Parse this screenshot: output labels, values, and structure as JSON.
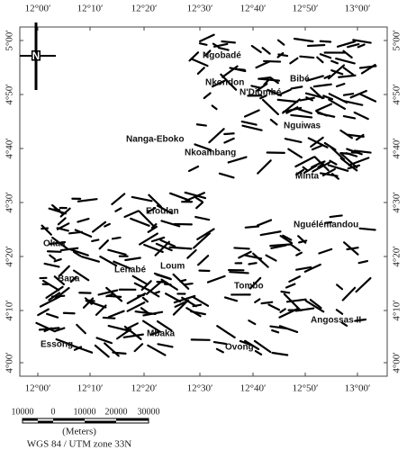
{
  "map": {
    "x_ticks": [
      "12°00′",
      "12°10′",
      "12°20′",
      "12°30′",
      "12°40′",
      "12°50′",
      "13°00′"
    ],
    "y_ticks": [
      "5°00′",
      "4°50′",
      "4°40′",
      "4°30′",
      "4°20′",
      "4°10′",
      "4°00′"
    ],
    "north_label": "N",
    "places": [
      "Ngobadé",
      "Nkondon",
      "Bibé",
      "N'Djombé",
      "Nguiwas",
      "Nanga-Eboko",
      "Nkoambang",
      "Minta",
      "Efoulan",
      "Nguélémandou",
      "Okaa",
      "Loum",
      "Lehabé",
      "Bana",
      "Tombo",
      "Angossas II",
      "Mbaka",
      "Essong",
      "Ovong"
    ],
    "scale": {
      "labels": [
        "10000",
        "0",
        "10000",
        "20000",
        "30000"
      ],
      "unit": "(Meters)"
    },
    "projection": "WGS 84 / UTM zone 33N"
  }
}
